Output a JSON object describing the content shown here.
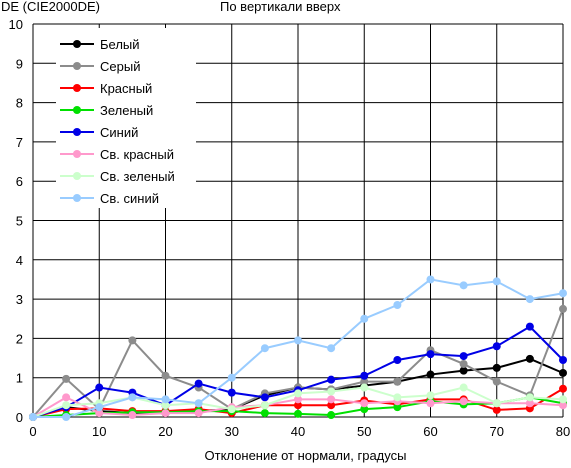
{
  "chart_data": {
    "type": "line",
    "title": "По вертикали вверх",
    "ylabel": "DE (CIE2000DE)",
    "xlabel": "Отклонение от нормали, градусы",
    "xlim": [
      0,
      80
    ],
    "ylim": [
      0,
      10
    ],
    "xticks": [
      0,
      10,
      20,
      30,
      40,
      50,
      60,
      70,
      80
    ],
    "yticks": [
      0,
      1,
      2,
      3,
      4,
      5,
      6,
      7,
      8,
      9,
      10
    ],
    "grid": true,
    "legend_position": "top-left",
    "x": [
      0,
      5,
      10,
      15,
      20,
      25,
      30,
      35,
      40,
      45,
      50,
      55,
      60,
      65,
      70,
      75,
      80
    ],
    "series": [
      {
        "name": "Белый",
        "color": "#000000",
        "values": [
          0.0,
          0.25,
          0.15,
          0.1,
          0.1,
          0.15,
          0.2,
          0.55,
          0.75,
          0.7,
          0.8,
          0.9,
          1.08,
          1.18,
          1.25,
          1.48,
          1.12
        ]
      },
      {
        "name": "Серый",
        "color": "#8c8c8c",
        "values": [
          0.0,
          0.97,
          0.2,
          1.95,
          1.05,
          0.75,
          0.2,
          0.6,
          0.75,
          0.7,
          0.9,
          0.9,
          1.7,
          1.35,
          0.9,
          0.55,
          2.75
        ]
      },
      {
        "name": "Красный",
        "color": "#ff0000",
        "values": [
          0.0,
          0.2,
          0.22,
          0.15,
          0.15,
          0.2,
          0.1,
          0.3,
          0.3,
          0.3,
          0.42,
          0.32,
          0.45,
          0.45,
          0.18,
          0.22,
          0.72
        ]
      },
      {
        "name": "Зеленый",
        "color": "#00e000",
        "values": [
          0.0,
          0.05,
          0.1,
          0.12,
          0.12,
          0.15,
          0.15,
          0.1,
          0.08,
          0.05,
          0.2,
          0.25,
          0.4,
          0.32,
          0.35,
          0.5,
          0.35
        ]
      },
      {
        "name": "Синий",
        "color": "#0000e6",
        "values": [
          0.0,
          0.25,
          0.75,
          0.62,
          0.3,
          0.85,
          0.62,
          0.5,
          0.68,
          0.95,
          1.05,
          1.45,
          1.6,
          1.55,
          1.8,
          2.3,
          1.45
        ]
      },
      {
        "name": "Св. красный",
        "color": "#ff99cc",
        "values": [
          0.0,
          0.5,
          0.1,
          0.05,
          0.1,
          0.1,
          0.25,
          0.3,
          0.45,
          0.45,
          0.35,
          0.4,
          0.35,
          0.4,
          0.35,
          0.35,
          0.3
        ]
      },
      {
        "name": "Св. зеленый",
        "color": "#ccffcc",
        "values": [
          0.0,
          0.3,
          0.35,
          0.5,
          0.3,
          0.35,
          0.2,
          0.3,
          0.6,
          0.65,
          0.75,
          0.5,
          0.55,
          0.75,
          0.35,
          0.5,
          0.45
        ]
      },
      {
        "name": "Св. синий",
        "color": "#99ccff",
        "values": [
          0.0,
          0.0,
          0.25,
          0.5,
          0.45,
          0.35,
          1.0,
          1.75,
          1.95,
          1.75,
          2.5,
          2.85,
          3.5,
          3.35,
          3.45,
          3.0,
          3.15
        ]
      }
    ]
  }
}
